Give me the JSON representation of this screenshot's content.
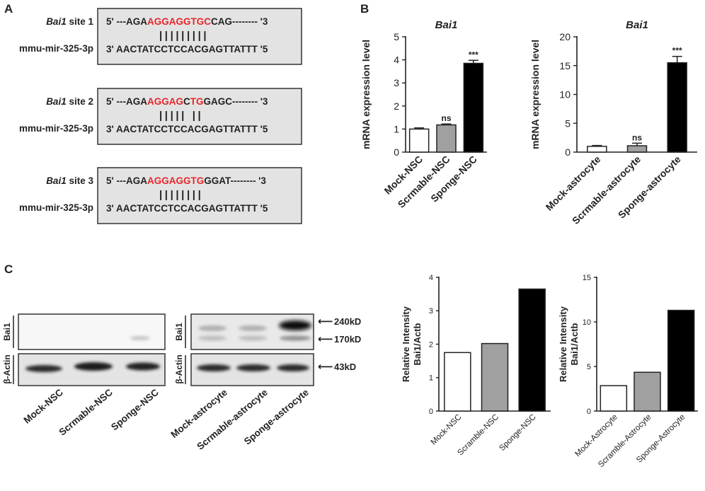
{
  "panels": {
    "a": "A",
    "b": "B",
    "c": "C"
  },
  "panel_a": {
    "sites": [
      {
        "gene": "Bai1",
        "label_suffix": " site 1",
        "mirna": "mmu-mir-325-3p",
        "top": [
          {
            "text": "5' ---AGA",
            "red": false
          },
          {
            "text": "AGGAGGTGC",
            "red": true
          },
          {
            "text": "CAG-------- '3",
            "red": false
          }
        ],
        "pairs": "|||||||||",
        "bottom": "3' AACTATCCTCCACGAGTTATTT '5"
      },
      {
        "gene": "Bai1",
        "label_suffix": " site 2",
        "mirna": "mmu-mir-325-3p",
        "top": [
          {
            "text": "5' ---AGA",
            "red": false
          },
          {
            "text": "AGGAG",
            "red": true
          },
          {
            "text": "C",
            "red": false
          },
          {
            "text": "TG",
            "red": true
          },
          {
            "text": "GAGC-------- '3",
            "red": false
          }
        ],
        "pairs": "|||||  ||",
        "bottom": "3' AACTATCCTCCACGAGTTATTT '5"
      },
      {
        "gene": "Bai1",
        "label_suffix": " site 3",
        "mirna": "mmu-mir-325-3p",
        "top": [
          {
            "text": "5' ---AGA",
            "red": false
          },
          {
            "text": "AGGAGGTG",
            "red": true
          },
          {
            "text": "GGAT-------- '3",
            "red": false
          }
        ],
        "pairs": "||||||||",
        "bottom": "3' AACTATCCTCCACGAGTTATTT '5"
      }
    ],
    "colors": {
      "box_fill": "#e3e3e3",
      "highlight": "#e8262b"
    }
  },
  "panel_c_blot": {
    "left_rows": [
      "Bai1",
      "β-Actin"
    ],
    "right_rows": [
      "Bai1",
      "β-Actin"
    ],
    "markers": [
      "240kD",
      "170kD",
      "43kD"
    ],
    "lanes_left": [
      "Mock-NSC",
      "Scrmable-NSC",
      "Sponge-NSC"
    ],
    "lanes_right": [
      "Mock-astrocyte",
      "Scrmable-astrocyte",
      "Sponge-astrocyte"
    ]
  },
  "chart_data": [
    {
      "id": "b1",
      "type": "bar",
      "title": "Bai1",
      "ylabel": "mRNA expression  level",
      "categories": [
        "Mock-NSC",
        "Scrmable-NSC",
        "Sponge-NSC"
      ],
      "values": [
        1.0,
        1.18,
        3.85
      ],
      "errors": [
        0.05,
        0.04,
        0.13
      ],
      "annotations": [
        "",
        "ns",
        "***"
      ],
      "ylim": [
        0,
        5
      ],
      "yticks": [
        0,
        1,
        2,
        3,
        4,
        5
      ],
      "fills": [
        "#ffffff",
        "#a0a0a0",
        "#000000"
      ]
    },
    {
      "id": "b2",
      "type": "bar",
      "title": "Bai1",
      "ylabel": "mRNA expression  level",
      "categories": [
        "Mock-astrocyte",
        "Scrmable-astrocyte",
        "Sponge-astrocyte"
      ],
      "values": [
        1.0,
        1.1,
        15.5
      ],
      "errors": [
        0.15,
        0.45,
        1.1
      ],
      "annotations": [
        "",
        "ns",
        "***"
      ],
      "ylim": [
        0,
        20
      ],
      "yticks": [
        0,
        5,
        10,
        15,
        20
      ],
      "fills": [
        "#ffffff",
        "#a0a0a0",
        "#000000"
      ]
    },
    {
      "id": "c1",
      "type": "bar",
      "title": "",
      "ylabel": [
        "Relative Intensity",
        "Bai1/Actb"
      ],
      "categories": [
        "Mock-NSC",
        "Scramble-NSC",
        "Sponge-NSC"
      ],
      "values": [
        1.75,
        2.02,
        3.65
      ],
      "errors": [
        0,
        0,
        0
      ],
      "annotations": [
        "",
        "",
        ""
      ],
      "ylim": [
        0,
        4
      ],
      "yticks": [
        0,
        1,
        2,
        3,
        4
      ],
      "fills": [
        "#ffffff",
        "#a0a0a0",
        "#000000"
      ]
    },
    {
      "id": "c2",
      "type": "bar",
      "title": "",
      "ylabel": [
        "Relative Intensity",
        "Bai1/Actb"
      ],
      "categories": [
        "Mock-Astrocyte",
        "Scramble-Astrocyte",
        "Sponge-Astrocyte"
      ],
      "values": [
        2.85,
        4.35,
        11.3
      ],
      "errors": [
        0,
        0,
        0
      ],
      "annotations": [
        "",
        "",
        ""
      ],
      "ylim": [
        0,
        15
      ],
      "yticks": [
        0,
        5,
        10,
        15
      ],
      "fills": [
        "#ffffff",
        "#a0a0a0",
        "#000000"
      ]
    }
  ]
}
